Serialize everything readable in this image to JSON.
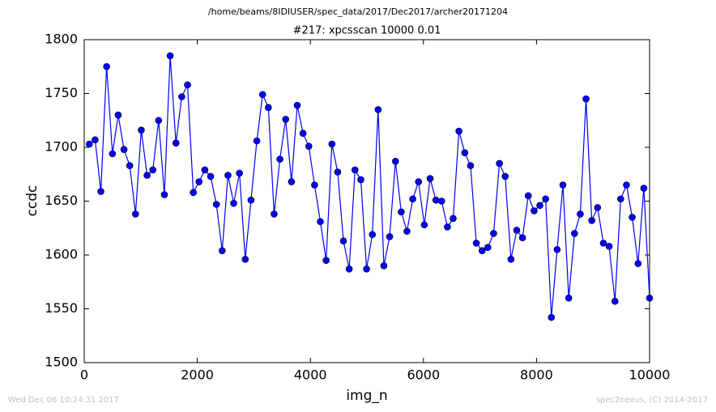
{
  "chart_data": {
    "type": "line",
    "title": "/home/beams/8IDIUSER/spec_data/2017/Dec2017/archer20171204",
    "subtitle": "#217: xpcsscan 10000 0.01",
    "x_label": "img_n",
    "y_label": "ccdc",
    "footer_left": "Wed Dec 06 10:24:31 2017",
    "footer_right": "spec2nexus, (C) 2014-2017",
    "x": [
      90,
      192,
      294,
      396,
      499,
      601,
      703,
      805,
      907,
      1009,
      1112,
      1214,
      1316,
      1418,
      1520,
      1622,
      1725,
      1827,
      1929,
      2031,
      2133,
      2235,
      2338,
      2440,
      2542,
      2644,
      2746,
      2848,
      2950,
      3053,
      3155,
      3257,
      3359,
      3461,
      3563,
      3666,
      3768,
      3870,
      3972,
      4074,
      4176,
      4279,
      4381,
      4483,
      4585,
      4687,
      4789,
      4892,
      4994,
      5096,
      5198,
      5300,
      5402,
      5505,
      5607,
      5709,
      5811,
      5913,
      6015,
      6118,
      6220,
      6322,
      6424,
      6526,
      6628,
      6731,
      6833,
      6935,
      7037,
      7139,
      7241,
      7344,
      7446,
      7548,
      7650,
      7752,
      7854,
      7957,
      8059,
      8161,
      8263,
      8365,
      8467,
      8570,
      8672,
      8774,
      8876,
      8978,
      9080,
      9183,
      9285,
      9387,
      9489,
      9591,
      9693,
      9796,
      9898,
      10000
    ],
    "series": [
      {
        "color": "#0000ff",
        "values": [
          1703,
          1707,
          1659,
          1775,
          1694,
          1730,
          1698,
          1683,
          1638,
          1716,
          1674,
          1679,
          1725,
          1656,
          1785,
          1704,
          1747,
          1758,
          1658,
          1668,
          1679,
          1673,
          1647,
          1604,
          1674,
          1648,
          1676,
          1596,
          1651,
          1706,
          1749,
          1737,
          1638,
          1689,
          1726,
          1668,
          1739,
          1713,
          1701,
          1665,
          1631,
          1595,
          1703,
          1677,
          1613,
          1587,
          1679,
          1670,
          1587,
          1619,
          1735,
          1590,
          1617,
          1687,
          1640,
          1622,
          1652,
          1668,
          1628,
          1671,
          1651,
          1650,
          1626,
          1634,
          1715,
          1695,
          1683,
          1611,
          1604,
          1607,
          1620,
          1685,
          1673,
          1596,
          1623,
          1616,
          1655,
          1641,
          1646,
          1652,
          1542,
          1605,
          1665,
          1560,
          1620,
          1638,
          1745,
          1632,
          1644,
          1611,
          1608,
          1557,
          1652,
          1665,
          1635,
          1592,
          1662,
          1560
        ]
      }
    ],
    "xlim": [
      0,
      10000
    ],
    "xticks": [
      0,
      2000,
      4000,
      6000,
      8000,
      10000
    ],
    "ylim": [
      1500,
      1800
    ],
    "yticks": [
      1500,
      1550,
      1600,
      1650,
      1700,
      1750,
      1800
    ],
    "grid": false
  }
}
